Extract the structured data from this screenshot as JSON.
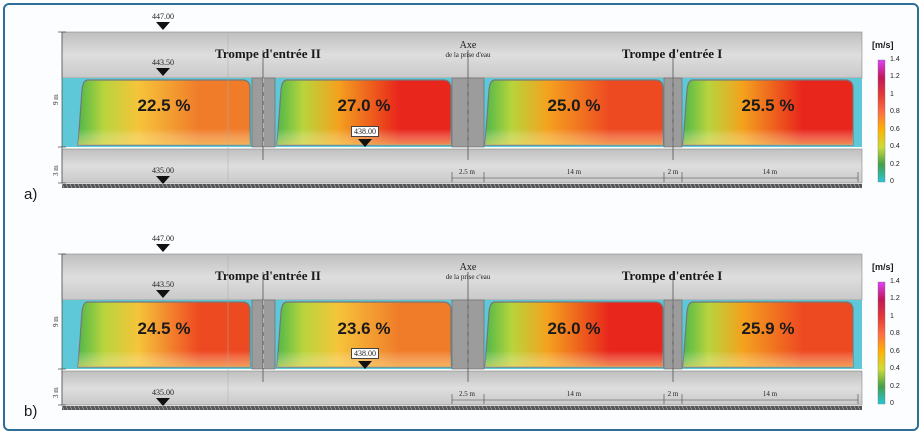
{
  "panels": [
    {
      "label": "a)",
      "elev_top": "447.00",
      "elev_water": "443.50",
      "elev_bottom": "435.00",
      "elev_box": "438.00",
      "height_9m": "9 m",
      "height_3m": "3 m",
      "title_left": "Trompe d'entrée II",
      "title_right": "Trompe d'entrée I",
      "axe_title": "Axe",
      "axe_sub": "de la prise d'eau",
      "dims": [
        "2.5 m",
        "14 m",
        "2 m",
        "14 m"
      ],
      "bays": [
        {
          "pct": "22.5 %",
          "level": 0.62
        },
        {
          "pct": "27.0 %",
          "level": 0.95
        },
        {
          "pct": "25.0 %",
          "level": 0.8
        },
        {
          "pct": "25.5 %",
          "level": 0.85
        }
      ]
    },
    {
      "label": "b)",
      "elev_top": "447.00",
      "elev_water": "443.50",
      "elev_bottom": "435.00",
      "elev_box": "438.00",
      "height_9m": "9 m",
      "height_3m": "3 m",
      "title_left": "Trompe d'entrée II",
      "title_right": "Trompe d'entrée I",
      "axe_title": "Axe",
      "axe_sub": "de la prise c'eau",
      "dims": [
        "2.5 m",
        "14 m",
        "2 m",
        "14 m"
      ],
      "bays": [
        {
          "pct": "24.5 %",
          "level": 0.7
        },
        {
          "pct": "23.6 %",
          "level": 0.55
        },
        {
          "pct": "26.0 %",
          "level": 0.82
        },
        {
          "pct": "25.9 %",
          "level": 0.75
        }
      ]
    }
  ],
  "colorbar": {
    "unit": "[m/s]",
    "ticks": [
      "1.4",
      "1.2",
      "1",
      "0.8",
      "0.6",
      "0.4",
      "0.2",
      "0"
    ],
    "colors": [
      "#e040fb",
      "#c2185b",
      "#e53935",
      "#ff7043",
      "#ffb300",
      "#cddc39",
      "#43a047",
      "#26c6da"
    ]
  }
}
